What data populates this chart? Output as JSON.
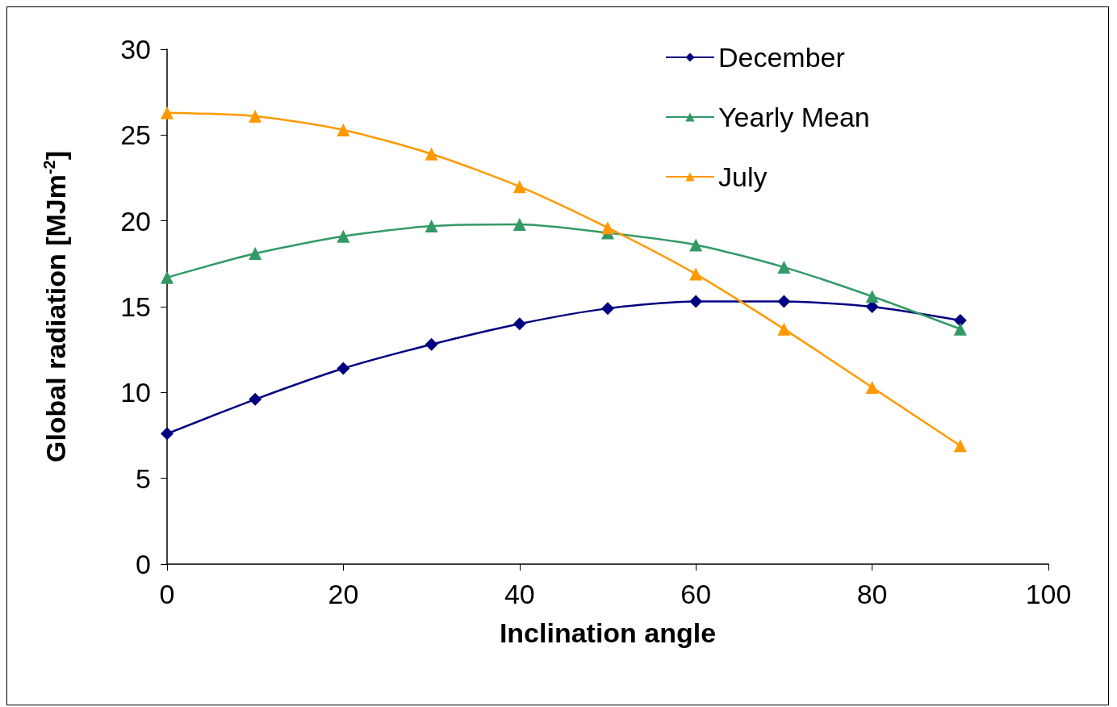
{
  "chart_data": {
    "type": "line",
    "xlabel": "Inclination angle",
    "ylabel": "Global radiation [MJm$^{-2}$]",
    "x": [
      0,
      10,
      20,
      30,
      40,
      50,
      60,
      70,
      80,
      90
    ],
    "series": [
      {
        "name": "December",
        "color": "#000080",
        "marker": "diamond",
        "values": [
          7.6,
          9.6,
          11.4,
          12.8,
          14.0,
          14.9,
          15.3,
          15.3,
          15.0,
          14.2
        ]
      },
      {
        "name": "Yearly Mean",
        "color": "#339966",
        "marker": "triangle",
        "values": [
          16.7,
          18.1,
          19.1,
          19.7,
          19.8,
          19.3,
          18.6,
          17.3,
          15.6,
          13.7
        ]
      },
      {
        "name": "July",
        "color": "#ff9900",
        "marker": "triangle",
        "values": [
          26.3,
          26.1,
          25.3,
          23.9,
          22.0,
          19.6,
          16.9,
          13.7,
          10.3,
          6.9
        ]
      }
    ],
    "xlim": [
      0,
      100
    ],
    "xticks": [
      0,
      20,
      40,
      60,
      80,
      100
    ],
    "ylim": [
      0,
      30
    ],
    "yticks": [
      0,
      5,
      10,
      15,
      20,
      25,
      30
    ],
    "grid": false,
    "legend": "top right"
  }
}
